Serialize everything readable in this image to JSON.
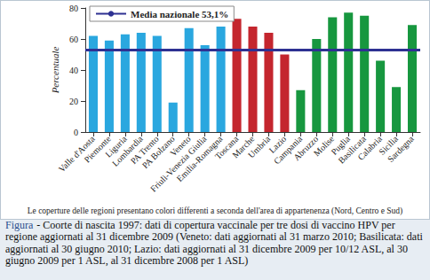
{
  "chart_data": {
    "type": "bar",
    "categories": [
      "Valle d'Aosta",
      "Piemonte",
      "Liguria",
      "Lombardia",
      "PA Trento",
      "PA Bolzano",
      "Veneto",
      "Friuli-Venezia Giulia",
      "Emilia-Romagna",
      "Toscana",
      "Marche",
      "Umbria",
      "Lazio",
      "Campania",
      "Abruzzo",
      "Molise",
      "Puglia",
      "Basilicata",
      "Calabria",
      "Sicilia",
      "Sardegna"
    ],
    "values": [
      62,
      59,
      63,
      64,
      62,
      19,
      67,
      56,
      68,
      73,
      68,
      64,
      50,
      27,
      60,
      74,
      77,
      75,
      46,
      29,
      69
    ],
    "colors": [
      "#2aa7df",
      "#2aa7df",
      "#2aa7df",
      "#2aa7df",
      "#2aa7df",
      "#2aa7df",
      "#2aa7df",
      "#2aa7df",
      "#2aa7df",
      "#c4262e",
      "#c4262e",
      "#c4262e",
      "#c4262e",
      "#17973f",
      "#17973f",
      "#17973f",
      "#17973f",
      "#17973f",
      "#17973f",
      "#17973f",
      "#17973f"
    ],
    "ylabel": "Percentuale",
    "ylim": [
      0,
      80
    ],
    "yticks": [
      0,
      20,
      40,
      60,
      80
    ],
    "grid": false,
    "reference_line": {
      "value": 53.1,
      "label": "Media nazionale 53,1%",
      "color": "#2e3192"
    },
    "legend": "top-left",
    "note": "Le coperture delle regioni presentano colori differenti a seconda dell'area di appartenenza (Nord, Centro e Sud)"
  },
  "caption": {
    "label": "Figura",
    "text": "- Coorte di nascita 1997: dati di copertura vaccinale per tre dosi di vaccino HPV per regione aggiornati al 31 dicembre 2009 (Veneto: dati aggiornati al 31 marzo 2010; Basilicata: dati aggiornati al 30 giugno 2010; Lazio: dati aggiornati al 31 dicembre 2009 per 10/12 ASL, al 30 giugno 2009 per 1 ASL, al 31 dicembre 2008 per 1 ASL)"
  }
}
